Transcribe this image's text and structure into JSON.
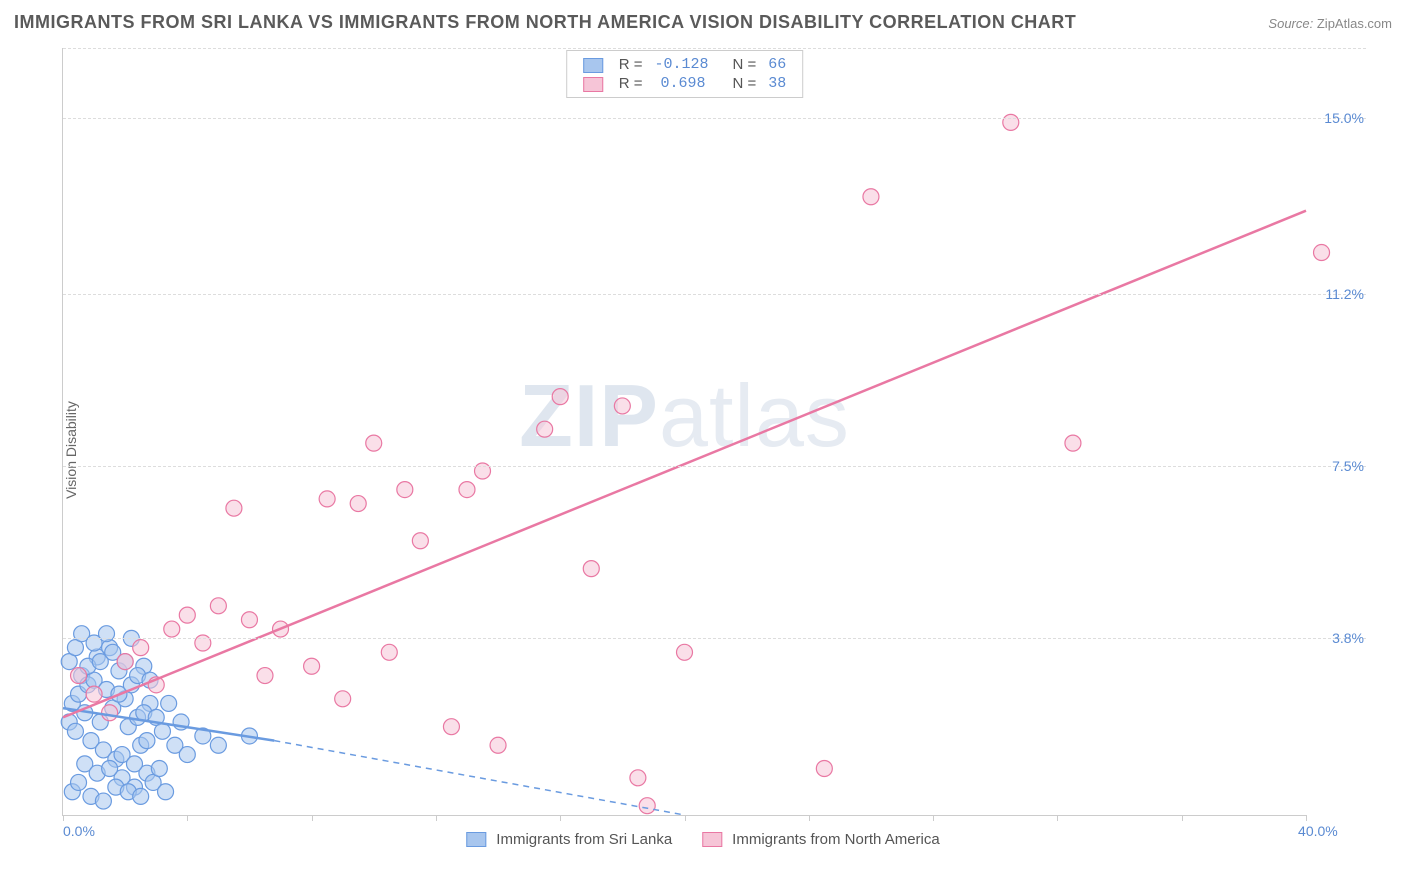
{
  "header": {
    "title": "IMMIGRANTS FROM SRI LANKA VS IMMIGRANTS FROM NORTH AMERICA VISION DISABILITY CORRELATION CHART",
    "source_label": "Source:",
    "source_name": "ZipAtlas.com"
  },
  "watermark": {
    "bold": "ZIP",
    "light": "atlas"
  },
  "chart": {
    "type": "scatter",
    "ylabel": "Vision Disability",
    "xlim": [
      0,
      40
    ],
    "ylim": [
      0,
      16.5
    ],
    "x_ticks": [
      0,
      4,
      8,
      12,
      16,
      20,
      24,
      28,
      32,
      36,
      40
    ],
    "x_tick_labels": {
      "0": "0.0%",
      "40": "40.0%"
    },
    "y_gridlines": [
      3.8,
      7.5,
      11.2,
      15.0
    ],
    "y_tick_labels": [
      "3.8%",
      "7.5%",
      "11.2%",
      "15.0%"
    ],
    "background_color": "#ffffff",
    "grid_color": "#dddddd",
    "axis_color": "#cccccc",
    "series": [
      {
        "name": "Immigrants from Sri Lanka",
        "color_stroke": "#6a9be0",
        "color_fill": "#a8c6ee",
        "fill_opacity": 0.55,
        "marker_radius": 8,
        "r_value": "-0.128",
        "n_value": "66",
        "trend": {
          "x1": 0,
          "y1": 2.3,
          "x2": 6.8,
          "y2": 1.6,
          "dash_x2": 20,
          "dash_y2": 0,
          "stroke_width": 2.5,
          "dash_pattern": "6,5"
        },
        "points": [
          [
            0.2,
            2.0
          ],
          [
            0.3,
            2.4
          ],
          [
            0.4,
            1.8
          ],
          [
            0.5,
            2.6
          ],
          [
            0.6,
            3.0
          ],
          [
            0.7,
            2.2
          ],
          [
            0.8,
            2.8
          ],
          [
            0.9,
            1.6
          ],
          [
            1.0,
            2.9
          ],
          [
            1.1,
            3.4
          ],
          [
            1.2,
            2.0
          ],
          [
            1.3,
            1.4
          ],
          [
            1.4,
            2.7
          ],
          [
            1.5,
            3.6
          ],
          [
            1.6,
            2.3
          ],
          [
            1.7,
            1.2
          ],
          [
            1.8,
            3.1
          ],
          [
            1.9,
            0.8
          ],
          [
            2.0,
            2.5
          ],
          [
            2.1,
            1.9
          ],
          [
            2.2,
            3.8
          ],
          [
            2.3,
            0.6
          ],
          [
            2.4,
            2.1
          ],
          [
            2.5,
            1.5
          ],
          [
            2.6,
            3.2
          ],
          [
            2.7,
            0.9
          ],
          [
            2.8,
            2.4
          ],
          [
            0.3,
            0.5
          ],
          [
            0.5,
            0.7
          ],
          [
            0.7,
            1.1
          ],
          [
            0.9,
            0.4
          ],
          [
            1.1,
            0.9
          ],
          [
            1.3,
            0.3
          ],
          [
            1.5,
            1.0
          ],
          [
            1.7,
            0.6
          ],
          [
            1.9,
            1.3
          ],
          [
            2.1,
            0.5
          ],
          [
            2.3,
            1.1
          ],
          [
            2.5,
            0.4
          ],
          [
            2.7,
            1.6
          ],
          [
            2.9,
            0.7
          ],
          [
            3.1,
            1.0
          ],
          [
            3.3,
            0.5
          ],
          [
            0.2,
            3.3
          ],
          [
            0.4,
            3.6
          ],
          [
            0.6,
            3.9
          ],
          [
            0.8,
            3.2
          ],
          [
            1.0,
            3.7
          ],
          [
            1.2,
            3.3
          ],
          [
            1.4,
            3.9
          ],
          [
            1.6,
            3.5
          ],
          [
            1.8,
            2.6
          ],
          [
            2.0,
            3.3
          ],
          [
            2.2,
            2.8
          ],
          [
            2.4,
            3.0
          ],
          [
            2.6,
            2.2
          ],
          [
            2.8,
            2.9
          ],
          [
            3.0,
            2.1
          ],
          [
            3.2,
            1.8
          ],
          [
            3.4,
            2.4
          ],
          [
            3.6,
            1.5
          ],
          [
            3.8,
            2.0
          ],
          [
            4.0,
            1.3
          ],
          [
            4.5,
            1.7
          ],
          [
            5.0,
            1.5
          ],
          [
            6.0,
            1.7
          ]
        ]
      },
      {
        "name": "Immigrants from North America",
        "color_stroke": "#e978a3",
        "color_fill": "#f6c5d7",
        "fill_opacity": 0.55,
        "marker_radius": 8,
        "r_value": "0.698",
        "n_value": "38",
        "trend": {
          "x1": 0,
          "y1": 2.1,
          "x2": 40,
          "y2": 13.0,
          "stroke_width": 2.5
        },
        "points": [
          [
            0.5,
            3.0
          ],
          [
            1.0,
            2.6
          ],
          [
            1.5,
            2.2
          ],
          [
            2.0,
            3.3
          ],
          [
            2.5,
            3.6
          ],
          [
            3.0,
            2.8
          ],
          [
            3.5,
            4.0
          ],
          [
            4.0,
            4.3
          ],
          [
            4.5,
            3.7
          ],
          [
            5.0,
            4.5
          ],
          [
            5.5,
            6.6
          ],
          [
            6.0,
            4.2
          ],
          [
            6.5,
            3.0
          ],
          [
            7.0,
            4.0
          ],
          [
            8.0,
            3.2
          ],
          [
            8.5,
            6.8
          ],
          [
            9.0,
            2.5
          ],
          [
            9.5,
            6.7
          ],
          [
            10.0,
            8.0
          ],
          [
            10.5,
            3.5
          ],
          [
            11.0,
            7.0
          ],
          [
            11.5,
            5.9
          ],
          [
            12.5,
            1.9
          ],
          [
            13.0,
            7.0
          ],
          [
            13.5,
            7.4
          ],
          [
            14.0,
            1.5
          ],
          [
            15.5,
            8.3
          ],
          [
            16.0,
            9.0
          ],
          [
            17.0,
            5.3
          ],
          [
            18.0,
            8.8
          ],
          [
            18.5,
            0.8
          ],
          [
            18.8,
            0.2
          ],
          [
            20.0,
            3.5
          ],
          [
            24.5,
            1.0
          ],
          [
            26.0,
            13.3
          ],
          [
            30.5,
            14.9
          ],
          [
            32.5,
            8.0
          ],
          [
            40.5,
            12.1
          ]
        ]
      }
    ],
    "legend_top": {
      "r_label": "R =",
      "n_label": "N ="
    },
    "axis_label_color": "#5a8ad2"
  }
}
